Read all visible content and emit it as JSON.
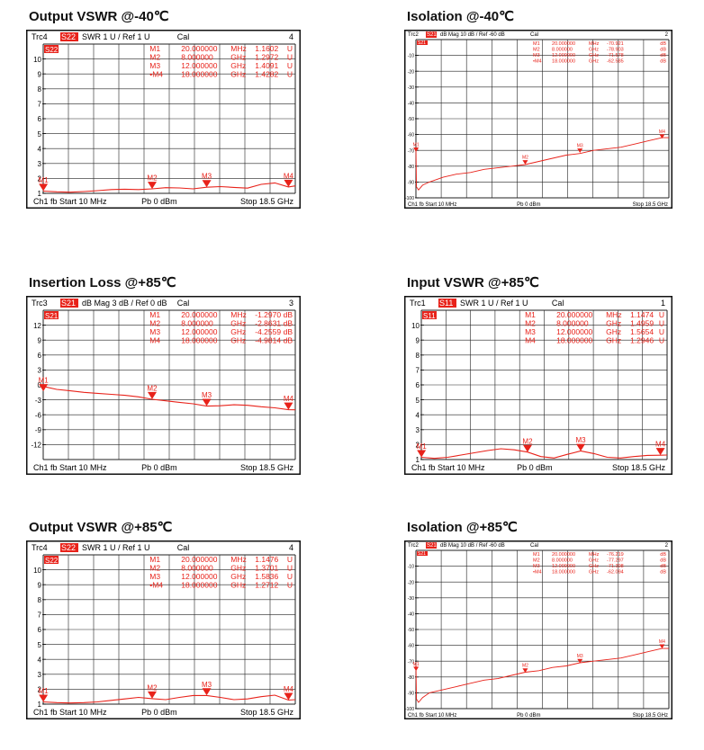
{
  "colors": {
    "trace": "#e8221a",
    "grid": "#222222",
    "frame": "#111111",
    "badge_bg": "#e8221a",
    "badge_fg": "#ffffff"
  },
  "panels": [
    {
      "id": "p1",
      "title": "Output VSWR @-40℃",
      "style": "large",
      "header": {
        "trc": "Trc4",
        "param": "S22",
        "fmt": "SWR  1 U /  Ref 1 U",
        "cal": "Cal",
        "num": "4"
      },
      "footer": {
        "ch": "Ch1  fb  Start  10 MHz",
        "pb": "Pb   0 dBm",
        "stop": "Stop  18.5 GHz"
      },
      "marker_table": [
        {
          "id": "M1",
          "freq": "20.000000",
          "unit": "MHz",
          "value": "1.1602",
          "vunit": "U"
        },
        {
          "id": "M2",
          "freq": "8.000000",
          "unit": "GHz",
          "value": "1.2972",
          "vunit": "U"
        },
        {
          "id": "M3",
          "freq": "12.000000",
          "unit": "GHz",
          "value": "1.4091",
          "vunit": "U"
        },
        {
          "id": "•M4",
          "freq": "18.000000",
          "unit": "GHz",
          "value": "1.4282",
          "vunit": "U"
        }
      ]
    },
    {
      "id": "p2",
      "title": "Isolation @-40℃",
      "style": "small",
      "header": {
        "trc": "Trc2",
        "param": "S21",
        "fmt": "dB Mag  10 dB /  Ref -60 dB",
        "cal": "Cal",
        "num": "2"
      },
      "footer": {
        "ch": "Ch1  fb  Start  10 MHz",
        "pb": "Pb   0 dBm",
        "stop": "Stop  18.5 GHz"
      },
      "marker_table": [
        {
          "id": "M1",
          "freq": "20.000000",
          "unit": "MHz",
          "value": "-70.921",
          "vunit": "dB"
        },
        {
          "id": "M2",
          "freq": "8.000000",
          "unit": "GHz",
          "value": "-78.903",
          "vunit": "dB"
        },
        {
          "id": "M3",
          "freq": "12.000000",
          "unit": "GHz",
          "value": "-71.578",
          "vunit": "dB"
        },
        {
          "id": "•M4",
          "freq": "18.000000",
          "unit": "GHz",
          "value": "-62.585",
          "vunit": "dB"
        }
      ]
    },
    {
      "id": "p3",
      "title": "Insertion Loss @+85℃",
      "style": "large",
      "header": {
        "trc": "Trc3",
        "param": "S21",
        "fmt": "dB Mag  3 dB /  Ref 0 dB",
        "cal": "Cal",
        "num": "3"
      },
      "footer": {
        "ch": "Ch1  fb  Start  10 MHz",
        "pb": "Pb   0 dBm",
        "stop": "Stop  18.5 GHz"
      },
      "marker_table": [
        {
          "id": "M1",
          "freq": "20.000000",
          "unit": "MHz",
          "value": "-1.2970",
          "vunit": "dB"
        },
        {
          "id": "M2",
          "freq": "8.000000",
          "unit": "GHz",
          "value": "-2.8631",
          "vunit": "dB"
        },
        {
          "id": "M3",
          "freq": "12.000000",
          "unit": "GHz",
          "value": "-4.2559",
          "vunit": "dB"
        },
        {
          "id": "M4",
          "freq": "18.000000",
          "unit": "GHz",
          "value": "-4.9814",
          "vunit": "dB"
        }
      ]
    },
    {
      "id": "p4",
      "title": "Input VSWR @+85℃",
      "style": "large",
      "header": {
        "trc": "Trc1",
        "param": "S11",
        "fmt": "SWR  1 U /  Ref 1 U",
        "cal": "Cal",
        "num": "1"
      },
      "footer": {
        "ch": "Ch1  fb  Start  10 MHz",
        "pb": "Pb   0 dBm",
        "stop": "Stop  18.5 GHz"
      },
      "marker_table": [
        {
          "id": "M1",
          "freq": "20.000000",
          "unit": "MHz",
          "value": "1.1474",
          "vunit": "U"
        },
        {
          "id": "M2",
          "freq": "8.000000",
          "unit": "GHz",
          "value": "1.4959",
          "vunit": "U"
        },
        {
          "id": "M3",
          "freq": "12.000000",
          "unit": "GHz",
          "value": "1.5654",
          "vunit": "U"
        },
        {
          "id": "M4",
          "freq": "18.000000",
          "unit": "GHz",
          "value": "1.2946",
          "vunit": "U"
        }
      ]
    },
    {
      "id": "p5",
      "title": "Output VSWR @+85℃",
      "style": "large",
      "header": {
        "trc": "Trc4",
        "param": "S22",
        "fmt": "SWR  1 U /  Ref 1 U",
        "cal": "Cal",
        "num": "4"
      },
      "footer": {
        "ch": "Ch1  fb  Start  10 MHz",
        "pb": "Pb   0 dBm",
        "stop": "Stop  18.5 GHz"
      },
      "marker_table": [
        {
          "id": "M1",
          "freq": "20.000000",
          "unit": "MHz",
          "value": "1.1476",
          "vunit": "U"
        },
        {
          "id": "M2",
          "freq": "8.000000",
          "unit": "GHz",
          "value": "1.3701",
          "vunit": "U"
        },
        {
          "id": "M3",
          "freq": "12.000000",
          "unit": "GHz",
          "value": "1.5836",
          "vunit": "U"
        },
        {
          "id": "•M4",
          "freq": "18.000000",
          "unit": "GHz",
          "value": "1.2712",
          "vunit": "U"
        }
      ]
    },
    {
      "id": "p6",
      "title": "Isolation @+85℃",
      "style": "small",
      "header": {
        "trc": "Trc2",
        "param": "S21",
        "fmt": "dB Mag  10 dB /  Ref -60 dB",
        "cal": "Cal",
        "num": "2"
      },
      "footer": {
        "ch": "Ch1  fb  Start  10 MHz",
        "pb": "Pb   0 dBm",
        "stop": "Stop  18.5 GHz"
      },
      "marker_table": [
        {
          "id": "M1",
          "freq": "20.000000",
          "unit": "MHz",
          "value": "-76.219",
          "vunit": "dB"
        },
        {
          "id": "M2",
          "freq": "8.000000",
          "unit": "GHz",
          "value": "-77.297",
          "vunit": "dB"
        },
        {
          "id": "M3",
          "freq": "12.000000",
          "unit": "GHz",
          "value": "-71.308",
          "vunit": "dB"
        },
        {
          "id": "•M4",
          "freq": "18.000000",
          "unit": "GHz",
          "value": "-62.094",
          "vunit": "dB"
        }
      ]
    }
  ],
  "chart_data": [
    {
      "type": "line",
      "title": "Output VSWR @-40℃",
      "y_ticks": [
        "10",
        "9",
        "8",
        "7",
        "6",
        "5",
        "4",
        "3",
        "2",
        "1"
      ],
      "ylim": [
        1,
        11
      ],
      "x_range_ghz": [
        0.01,
        18.5
      ],
      "markers": [
        {
          "name": "M1",
          "x_ghz": 0.02,
          "y": 1.1602
        },
        {
          "name": "M2",
          "x_ghz": 8.0,
          "y": 1.2972
        },
        {
          "name": "M3",
          "x_ghz": 12.0,
          "y": 1.4091
        },
        {
          "name": "M4",
          "x_ghz": 18.0,
          "y": 1.4282
        }
      ],
      "series": [
        {
          "x": [
            0.01,
            1,
            2,
            3,
            4,
            5,
            6,
            7,
            8,
            9,
            10,
            11,
            12,
            13,
            14,
            15,
            16,
            17,
            18,
            18.5
          ],
          "y": [
            1.15,
            1.1,
            1.08,
            1.12,
            1.18,
            1.25,
            1.28,
            1.25,
            1.3,
            1.38,
            1.36,
            1.3,
            1.41,
            1.45,
            1.4,
            1.35,
            1.6,
            1.7,
            1.43,
            1.5
          ]
        }
      ]
    },
    {
      "type": "line",
      "title": "Isolation @-40℃",
      "y_ticks": [
        "-10",
        "-20",
        "-30",
        "-40",
        "-50",
        "-60",
        "-70",
        "-80",
        "-90",
        "-100"
      ],
      "ylim": [
        -100,
        0
      ],
      "x_range_ghz": [
        0.01,
        18.5
      ],
      "markers": [
        {
          "name": "M1",
          "x_ghz": 0.02,
          "y": -70.921
        },
        {
          "name": "M2",
          "x_ghz": 8.0,
          "y": -78.903
        },
        {
          "name": "M3",
          "x_ghz": 12.0,
          "y": -71.578
        },
        {
          "name": "M4",
          "x_ghz": 18.0,
          "y": -62.585
        }
      ],
      "series": [
        {
          "x": [
            0.01,
            0.05,
            0.2,
            0.5,
            1,
            2,
            3,
            4,
            5,
            6,
            7,
            8,
            9,
            10,
            11,
            12,
            13,
            14,
            15,
            16,
            17,
            18,
            18.5
          ],
          "y": [
            -68,
            -93,
            -95,
            -92,
            -90,
            -87,
            -85,
            -84,
            -82,
            -81,
            -80,
            -79,
            -77,
            -75,
            -73,
            -72,
            -70,
            -69,
            -68,
            -66,
            -64,
            -62,
            -62
          ]
        }
      ]
    },
    {
      "type": "line",
      "title": "Insertion Loss @+85℃",
      "y_ticks": [
        "12",
        "9",
        "6",
        "3",
        "0",
        "-3",
        "-6",
        "-9",
        "-12"
      ],
      "ylim": [
        -15,
        15
      ],
      "x_range_ghz": [
        0.01,
        18.5
      ],
      "markers": [
        {
          "name": "M1",
          "x_ghz": 0.02,
          "y": -1.297
        },
        {
          "name": "M2",
          "x_ghz": 8.0,
          "y": -2.8631
        },
        {
          "name": "M3",
          "x_ghz": 12.0,
          "y": -4.2559
        },
        {
          "name": "M4",
          "x_ghz": 18.0,
          "y": -4.9814
        }
      ],
      "series": [
        {
          "x": [
            0.01,
            1,
            2,
            3,
            4,
            5,
            6,
            7,
            8,
            9,
            10,
            11,
            12,
            13,
            14,
            15,
            16,
            17,
            18,
            18.5
          ],
          "y": [
            -0.3,
            -0.9,
            -1.2,
            -1.5,
            -1.7,
            -1.9,
            -2.1,
            -2.4,
            -2.9,
            -3.2,
            -3.5,
            -3.8,
            -4.26,
            -4.2,
            -4.0,
            -4.1,
            -4.4,
            -4.6,
            -4.98,
            -5.0
          ]
        }
      ]
    },
    {
      "type": "line",
      "title": "Input VSWR @+85℃",
      "y_ticks": [
        "10",
        "9",
        "8",
        "7",
        "6",
        "5",
        "4",
        "3",
        "2",
        "1"
      ],
      "ylim": [
        1,
        11
      ],
      "x_range_ghz": [
        0.01,
        18.5
      ],
      "markers": [
        {
          "name": "M1",
          "x_ghz": 0.02,
          "y": 1.1474
        },
        {
          "name": "M2",
          "x_ghz": 8.0,
          "y": 1.4959
        },
        {
          "name": "M3",
          "x_ghz": 12.0,
          "y": 1.5654
        },
        {
          "name": "M4",
          "x_ghz": 18.0,
          "y": 1.2946
        }
      ],
      "series": [
        {
          "x": [
            0.01,
            1,
            2,
            3,
            4,
            5,
            6,
            7,
            8,
            9,
            10,
            11,
            12,
            13,
            14,
            15,
            16,
            17,
            18,
            18.5
          ],
          "y": [
            1.15,
            1.08,
            1.15,
            1.3,
            1.45,
            1.6,
            1.72,
            1.65,
            1.5,
            1.2,
            1.1,
            1.35,
            1.57,
            1.4,
            1.15,
            1.1,
            1.2,
            1.28,
            1.29,
            1.3
          ]
        }
      ]
    },
    {
      "type": "line",
      "title": "Output VSWR @+85℃",
      "y_ticks": [
        "10",
        "9",
        "8",
        "7",
        "6",
        "5",
        "4",
        "3",
        "2",
        "1"
      ],
      "ylim": [
        1,
        11
      ],
      "x_range_ghz": [
        0.01,
        18.5
      ],
      "markers": [
        {
          "name": "M1",
          "x_ghz": 0.02,
          "y": 1.1476
        },
        {
          "name": "M2",
          "x_ghz": 8.0,
          "y": 1.3701
        },
        {
          "name": "M3",
          "x_ghz": 12.0,
          "y": 1.5836
        },
        {
          "name": "M4",
          "x_ghz": 18.0,
          "y": 1.2712
        }
      ],
      "series": [
        {
          "x": [
            0.01,
            1,
            2,
            3,
            4,
            5,
            6,
            7,
            8,
            9,
            10,
            11,
            12,
            13,
            14,
            15,
            16,
            17,
            18,
            18.5
          ],
          "y": [
            1.15,
            1.1,
            1.08,
            1.1,
            1.15,
            1.25,
            1.35,
            1.45,
            1.37,
            1.3,
            1.45,
            1.58,
            1.58,
            1.45,
            1.3,
            1.35,
            1.5,
            1.6,
            1.27,
            1.3
          ]
        }
      ]
    },
    {
      "type": "line",
      "title": "Isolation @+85℃",
      "y_ticks": [
        "-10",
        "-20",
        "-30",
        "-40",
        "-50",
        "-60",
        "-70",
        "-80",
        "-90",
        "-100"
      ],
      "ylim": [
        -100,
        0
      ],
      "x_range_ghz": [
        0.01,
        18.5
      ],
      "markers": [
        {
          "name": "M1",
          "x_ghz": 0.02,
          "y": -76.219
        },
        {
          "name": "M2",
          "x_ghz": 8.0,
          "y": -77.297
        },
        {
          "name": "M3",
          "x_ghz": 12.0,
          "y": -71.308
        },
        {
          "name": "M4",
          "x_ghz": 18.0,
          "y": -62.094
        }
      ],
      "series": [
        {
          "x": [
            0.01,
            0.05,
            0.2,
            0.5,
            1,
            2,
            3,
            4,
            5,
            6,
            7,
            8,
            9,
            10,
            11,
            12,
            13,
            14,
            15,
            16,
            17,
            18,
            18.5
          ],
          "y": [
            -72,
            -94,
            -96,
            -93,
            -90,
            -88,
            -86,
            -84,
            -82,
            -81,
            -79,
            -77,
            -76,
            -74,
            -73,
            -71,
            -70,
            -69,
            -68,
            -66,
            -64,
            -62,
            -62
          ]
        }
      ]
    }
  ]
}
